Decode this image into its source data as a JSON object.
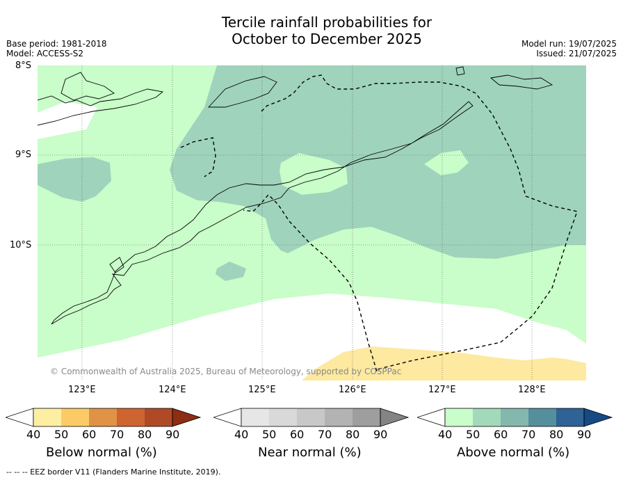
{
  "header": {
    "title_line1": "Tercile rainfall probabilities for",
    "title_line2": "October to December 2025",
    "base_period": "Base period: 1981-2018",
    "model": "Model: ACCESS-S2",
    "model_run": "Model run: 19/07/2025",
    "issued": "Issued: 21/07/2025"
  },
  "map": {
    "lat_labels": [
      "8°S",
      "9°S",
      "10°S"
    ],
    "lon_labels": [
      "123°E",
      "124°E",
      "125°E",
      "126°E",
      "127°E",
      "128°E"
    ],
    "copyright": "© Commonwealth of Australia 2025, Bureau of Meteorology, supported by COSPPac",
    "colors": {
      "above_40_50": "#c9fdc9",
      "above_50_60": "#9fd3bc",
      "below_40_50": "#fde9a0",
      "no_signal": "#ffffff"
    }
  },
  "legends": [
    {
      "title": "Below normal (%)",
      "ticks": [
        "40",
        "50",
        "60",
        "70",
        "80",
        "90"
      ],
      "colors": [
        "#ffffff",
        "#fdefa2",
        "#fdcb66",
        "#e09345",
        "#ce6531",
        "#b04a26",
        "#8c2d14"
      ]
    },
    {
      "title": "Near normal (%)",
      "ticks": [
        "40",
        "50",
        "60",
        "70",
        "80",
        "90"
      ],
      "colors": [
        "#ffffff",
        "#e6e6e6",
        "#d9d9d9",
        "#c8c8c8",
        "#b3b3b3",
        "#9e9e9e",
        "#848484"
      ]
    },
    {
      "title": "Above normal (%)",
      "ticks": [
        "40",
        "50",
        "60",
        "70",
        "80",
        "90"
      ],
      "colors": [
        "#ffffff",
        "#c9fdc9",
        "#a3d9bb",
        "#84b8ae",
        "#558f9e",
        "#2f6296",
        "#164a84"
      ]
    }
  ],
  "footer": "-- -- -- EEZ border V11 (Flanders Marine Institute, 2019)."
}
